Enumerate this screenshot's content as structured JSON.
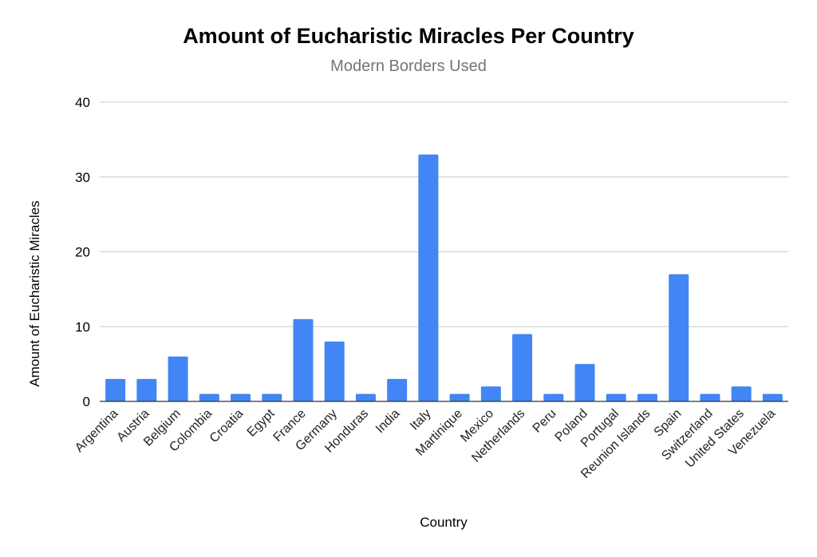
{
  "chart_data": {
    "type": "bar",
    "title": "Amount of Eucharistic Miracles Per Country",
    "subtitle": "Modern Borders Used",
    "xlabel": "Country",
    "ylabel": "Amount of Eucharistic Miracles",
    "ylim": [
      0,
      40
    ],
    "yticks": [
      0,
      10,
      20,
      30,
      40
    ],
    "grid": true,
    "legend": "none",
    "categories": [
      "Argentina",
      "Austria",
      "Belgium",
      "Colombia",
      "Croatia",
      "Egypt",
      "France",
      "Germany",
      "Honduras",
      "India",
      "Italy",
      "Martinique",
      "Mexico",
      "Netherlands",
      "Peru",
      "Poland",
      "Portugal",
      "Reunion Islands",
      "Spain",
      "Switzerland",
      "United States",
      "Venezuela"
    ],
    "values": [
      3,
      3,
      6,
      1,
      1,
      1,
      11,
      8,
      1,
      3,
      33,
      1,
      2,
      9,
      1,
      5,
      1,
      1,
      17,
      1,
      2,
      1
    ],
    "colors": {
      "bar": "#4285f4",
      "grid": "#cccccc",
      "axis": "#333333"
    }
  }
}
